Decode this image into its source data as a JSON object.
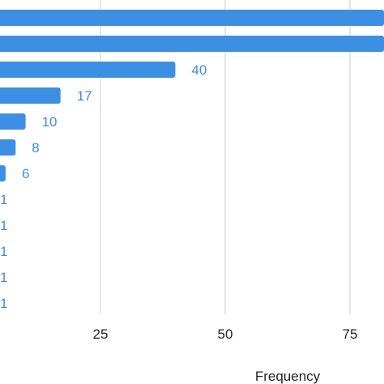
{
  "chart_data": {
    "type": "bar",
    "orientation": "horizontal",
    "values": [
      92,
      92,
      40,
      17,
      10,
      8,
      6,
      1,
      1,
      1,
      1,
      1
    ],
    "data_labels": [
      "",
      "",
      "40",
      "17",
      "10",
      "8",
      "6",
      "1",
      "1",
      "1",
      "1",
      "1"
    ],
    "x_ticks": [
      25,
      50,
      75
    ],
    "xlabel": "Frequency",
    "xlim": [
      5,
      92
    ],
    "grid": true,
    "colors": {
      "bar": "#3d8fe3",
      "label": "#3d8fe3",
      "grid": "#cccccc"
    }
  }
}
